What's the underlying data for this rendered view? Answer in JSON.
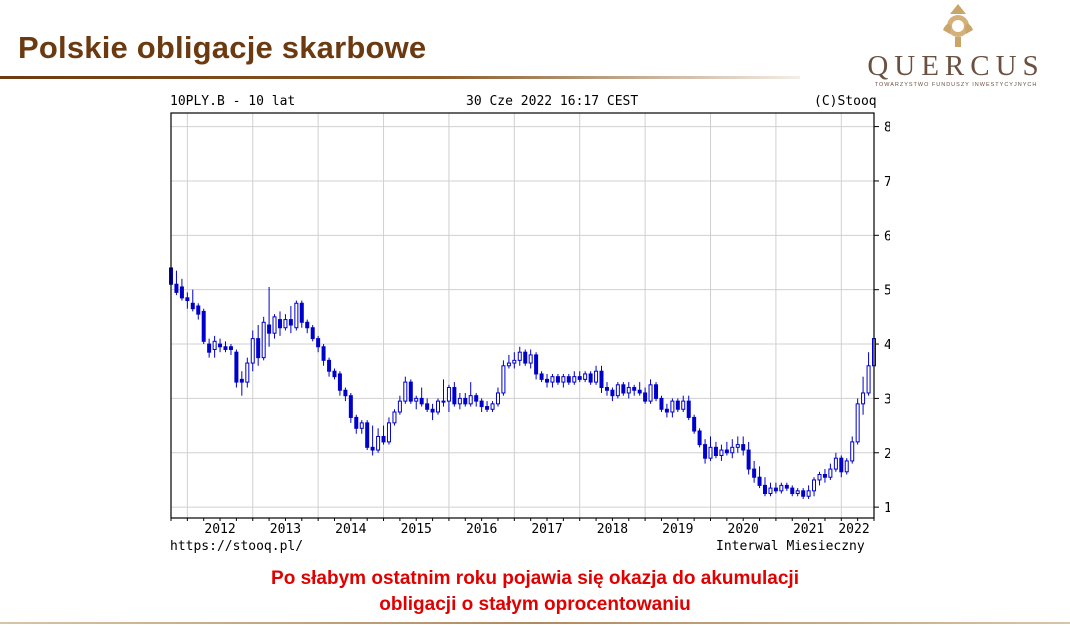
{
  "slide": {
    "title": "Polskie obligacje skarbowe",
    "logo_name": "QUERCUS",
    "logo_tagline": "TOWARZYSTWO FUNDUSZY INWESTYCYJNYCH",
    "caption_line1": "Po słabym ostatnim roku pojawia się okazja do akumulacji",
    "caption_line2": "obligacji o stałym oprocentowaniu"
  },
  "colors": {
    "title": "#6b3a10",
    "caption": "#e00000",
    "candles": "#0000cc",
    "grid": "#d0d0d0",
    "logo": "#c9a56a"
  },
  "chart_header": {
    "left": "10PLY.B - 10 lat",
    "center": "30 Cze 2022 16:17 CEST",
    "right": "(C)Stooq"
  },
  "chart_footer": {
    "left": "https://stooq.pl/",
    "right": "Interwal Miesieczny"
  },
  "chart_data": {
    "type": "candlestick",
    "interval": "monthly",
    "ylim": [
      0.8,
      8.25
    ],
    "y_ticks": [
      1,
      2,
      3,
      4,
      5,
      6,
      7,
      8
    ],
    "x_ticks": [
      "2012",
      "2013",
      "2014",
      "2015",
      "2016",
      "2017",
      "2018",
      "2019",
      "2020",
      "2021",
      "2022"
    ],
    "x_range": [
      2011.75,
      2022.5
    ],
    "grid": true,
    "y_axis_side": "right",
    "candles": [
      {
        "t": 2011.75,
        "o": 5.4,
        "h": 5.55,
        "l": 5.05,
        "c": 5.1
      },
      {
        "t": 2011.833,
        "o": 5.1,
        "h": 5.35,
        "l": 4.9,
        "c": 4.95
      },
      {
        "t": 2011.917,
        "o": 5.05,
        "h": 5.2,
        "l": 4.8,
        "c": 4.85
      },
      {
        "t": 2012.0,
        "o": 4.85,
        "h": 4.95,
        "l": 4.65,
        "c": 4.8
      },
      {
        "t": 2012.083,
        "o": 4.75,
        "h": 5.0,
        "l": 4.6,
        "c": 4.65
      },
      {
        "t": 2012.167,
        "o": 4.7,
        "h": 4.75,
        "l": 4.45,
        "c": 4.55
      },
      {
        "t": 2012.25,
        "o": 4.6,
        "h": 4.65,
        "l": 4.0,
        "c": 4.05
      },
      {
        "t": 2012.333,
        "o": 4.0,
        "h": 4.1,
        "l": 3.75,
        "c": 3.85
      },
      {
        "t": 2012.417,
        "o": 3.9,
        "h": 4.15,
        "l": 3.75,
        "c": 4.05
      },
      {
        "t": 2012.5,
        "o": 4.0,
        "h": 4.1,
        "l": 3.85,
        "c": 3.95
      },
      {
        "t": 2012.583,
        "o": 3.95,
        "h": 4.05,
        "l": 3.85,
        "c": 3.9
      },
      {
        "t": 2012.667,
        "o": 3.95,
        "h": 4.0,
        "l": 3.8,
        "c": 3.9
      },
      {
        "t": 2012.75,
        "o": 3.85,
        "h": 3.9,
        "l": 3.2,
        "c": 3.3
      },
      {
        "t": 2012.833,
        "o": 3.35,
        "h": 3.5,
        "l": 3.05,
        "c": 3.3
      },
      {
        "t": 2012.917,
        "o": 3.3,
        "h": 3.75,
        "l": 3.2,
        "c": 3.65
      },
      {
        "t": 2013.0,
        "o": 3.65,
        "h": 4.25,
        "l": 3.5,
        "c": 4.1
      },
      {
        "t": 2013.083,
        "o": 4.1,
        "h": 4.35,
        "l": 3.6,
        "c": 3.75
      },
      {
        "t": 2013.167,
        "o": 3.75,
        "h": 4.5,
        "l": 3.7,
        "c": 4.4
      },
      {
        "t": 2013.25,
        "o": 4.35,
        "h": 5.05,
        "l": 3.95,
        "c": 4.2
      },
      {
        "t": 2013.333,
        "o": 4.2,
        "h": 4.55,
        "l": 4.1,
        "c": 4.5
      },
      {
        "t": 2013.417,
        "o": 4.45,
        "h": 4.6,
        "l": 4.15,
        "c": 4.3
      },
      {
        "t": 2013.5,
        "o": 4.3,
        "h": 4.55,
        "l": 4.25,
        "c": 4.45
      },
      {
        "t": 2013.583,
        "o": 4.45,
        "h": 4.7,
        "l": 4.2,
        "c": 4.35
      },
      {
        "t": 2013.667,
        "o": 4.3,
        "h": 4.8,
        "l": 4.25,
        "c": 4.75
      },
      {
        "t": 2013.75,
        "o": 4.75,
        "h": 4.8,
        "l": 4.3,
        "c": 4.4
      },
      {
        "t": 2013.833,
        "o": 4.4,
        "h": 4.45,
        "l": 4.2,
        "c": 4.3
      },
      {
        "t": 2013.917,
        "o": 4.3,
        "h": 4.35,
        "l": 4.05,
        "c": 4.1
      },
      {
        "t": 2014.0,
        "o": 4.1,
        "h": 4.15,
        "l": 3.85,
        "c": 3.95
      },
      {
        "t": 2014.083,
        "o": 3.95,
        "h": 4.0,
        "l": 3.6,
        "c": 3.7
      },
      {
        "t": 2014.167,
        "o": 3.7,
        "h": 3.75,
        "l": 3.4,
        "c": 3.5
      },
      {
        "t": 2014.25,
        "o": 3.5,
        "h": 3.55,
        "l": 3.35,
        "c": 3.4
      },
      {
        "t": 2014.333,
        "o": 3.45,
        "h": 3.5,
        "l": 3.05,
        "c": 3.15
      },
      {
        "t": 2014.417,
        "o": 3.15,
        "h": 3.2,
        "l": 2.95,
        "c": 3.05
      },
      {
        "t": 2014.5,
        "o": 3.05,
        "h": 3.1,
        "l": 2.55,
        "c": 2.65
      },
      {
        "t": 2014.583,
        "o": 2.65,
        "h": 2.7,
        "l": 2.35,
        "c": 2.45
      },
      {
        "t": 2014.667,
        "o": 2.45,
        "h": 2.6,
        "l": 2.35,
        "c": 2.55
      },
      {
        "t": 2014.75,
        "o": 2.55,
        "h": 2.6,
        "l": 2.05,
        "c": 2.1
      },
      {
        "t": 2014.833,
        "o": 2.1,
        "h": 2.5,
        "l": 1.95,
        "c": 2.05
      },
      {
        "t": 2014.917,
        "o": 2.05,
        "h": 2.45,
        "l": 2.0,
        "c": 2.3
      },
      {
        "t": 2015.0,
        "o": 2.3,
        "h": 2.5,
        "l": 2.15,
        "c": 2.2
      },
      {
        "t": 2015.083,
        "o": 2.2,
        "h": 2.65,
        "l": 2.15,
        "c": 2.55
      },
      {
        "t": 2015.167,
        "o": 2.55,
        "h": 2.8,
        "l": 2.5,
        "c": 2.75
      },
      {
        "t": 2015.25,
        "o": 2.75,
        "h": 3.05,
        "l": 2.7,
        "c": 2.95
      },
      {
        "t": 2015.333,
        "o": 2.95,
        "h": 3.4,
        "l": 2.9,
        "c": 3.3
      },
      {
        "t": 2015.417,
        "o": 3.3,
        "h": 3.35,
        "l": 2.9,
        "c": 2.95
      },
      {
        "t": 2015.5,
        "o": 2.95,
        "h": 3.05,
        "l": 2.8,
        "c": 3.0
      },
      {
        "t": 2015.583,
        "o": 3.0,
        "h": 3.2,
        "l": 2.85,
        "c": 2.9
      },
      {
        "t": 2015.667,
        "o": 2.9,
        "h": 3.0,
        "l": 2.75,
        "c": 2.8
      },
      {
        "t": 2015.75,
        "o": 2.8,
        "h": 2.9,
        "l": 2.6,
        "c": 2.75
      },
      {
        "t": 2015.833,
        "o": 2.75,
        "h": 3.0,
        "l": 2.7,
        "c": 2.95
      },
      {
        "t": 2015.917,
        "o": 2.95,
        "h": 3.35,
        "l": 2.85,
        "c": 2.95
      },
      {
        "t": 2016.0,
        "o": 2.95,
        "h": 3.25,
        "l": 2.75,
        "c": 3.2
      },
      {
        "t": 2016.083,
        "o": 3.2,
        "h": 3.3,
        "l": 2.85,
        "c": 2.9
      },
      {
        "t": 2016.167,
        "o": 2.9,
        "h": 3.1,
        "l": 2.8,
        "c": 3.0
      },
      {
        "t": 2016.25,
        "o": 3.0,
        "h": 3.1,
        "l": 2.85,
        "c": 2.9
      },
      {
        "t": 2016.333,
        "o": 2.9,
        "h": 3.3,
        "l": 2.85,
        "c": 3.05
      },
      {
        "t": 2016.417,
        "o": 3.05,
        "h": 3.1,
        "l": 2.85,
        "c": 2.95
      },
      {
        "t": 2016.5,
        "o": 2.95,
        "h": 3.0,
        "l": 2.75,
        "c": 2.85
      },
      {
        "t": 2016.583,
        "o": 2.85,
        "h": 2.95,
        "l": 2.75,
        "c": 2.8
      },
      {
        "t": 2016.667,
        "o": 2.8,
        "h": 2.95,
        "l": 2.75,
        "c": 2.9
      },
      {
        "t": 2016.75,
        "o": 2.9,
        "h": 3.2,
        "l": 2.85,
        "c": 3.1
      },
      {
        "t": 2016.833,
        "o": 3.1,
        "h": 3.7,
        "l": 3.05,
        "c": 3.6
      },
      {
        "t": 2016.917,
        "o": 3.6,
        "h": 3.8,
        "l": 3.55,
        "c": 3.65
      },
      {
        "t": 2017.0,
        "o": 3.65,
        "h": 3.85,
        "l": 3.55,
        "c": 3.7
      },
      {
        "t": 2017.083,
        "o": 3.7,
        "h": 3.95,
        "l": 3.6,
        "c": 3.85
      },
      {
        "t": 2017.167,
        "o": 3.85,
        "h": 3.9,
        "l": 3.6,
        "c": 3.65
      },
      {
        "t": 2017.25,
        "o": 3.65,
        "h": 3.9,
        "l": 3.55,
        "c": 3.8
      },
      {
        "t": 2017.333,
        "o": 3.8,
        "h": 3.85,
        "l": 3.35,
        "c": 3.45
      },
      {
        "t": 2017.417,
        "o": 3.45,
        "h": 3.5,
        "l": 3.3,
        "c": 3.35
      },
      {
        "t": 2017.5,
        "o": 3.35,
        "h": 3.45,
        "l": 3.2,
        "c": 3.3
      },
      {
        "t": 2017.583,
        "o": 3.3,
        "h": 3.45,
        "l": 3.2,
        "c": 3.4
      },
      {
        "t": 2017.667,
        "o": 3.4,
        "h": 3.45,
        "l": 3.25,
        "c": 3.3
      },
      {
        "t": 2017.75,
        "o": 3.3,
        "h": 3.45,
        "l": 3.2,
        "c": 3.4
      },
      {
        "t": 2017.833,
        "o": 3.4,
        "h": 3.45,
        "l": 3.25,
        "c": 3.3
      },
      {
        "t": 2017.917,
        "o": 3.3,
        "h": 3.5,
        "l": 3.25,
        "c": 3.4
      },
      {
        "t": 2018.0,
        "o": 3.4,
        "h": 3.5,
        "l": 3.3,
        "c": 3.35
      },
      {
        "t": 2018.083,
        "o": 3.35,
        "h": 3.5,
        "l": 3.3,
        "c": 3.45
      },
      {
        "t": 2018.167,
        "o": 3.45,
        "h": 3.5,
        "l": 3.25,
        "c": 3.3
      },
      {
        "t": 2018.25,
        "o": 3.3,
        "h": 3.6,
        "l": 3.25,
        "c": 3.5
      },
      {
        "t": 2018.333,
        "o": 3.5,
        "h": 3.6,
        "l": 3.1,
        "c": 3.2
      },
      {
        "t": 2018.417,
        "o": 3.2,
        "h": 3.3,
        "l": 3.05,
        "c": 3.15
      },
      {
        "t": 2018.5,
        "o": 3.15,
        "h": 3.2,
        "l": 2.95,
        "c": 3.05
      },
      {
        "t": 2018.583,
        "o": 3.05,
        "h": 3.3,
        "l": 3.0,
        "c": 3.25
      },
      {
        "t": 2018.667,
        "o": 3.25,
        "h": 3.3,
        "l": 3.05,
        "c": 3.1
      },
      {
        "t": 2018.75,
        "o": 3.1,
        "h": 3.3,
        "l": 3.0,
        "c": 3.2
      },
      {
        "t": 2018.833,
        "o": 3.2,
        "h": 3.25,
        "l": 3.05,
        "c": 3.15
      },
      {
        "t": 2018.917,
        "o": 3.15,
        "h": 3.3,
        "l": 3.05,
        "c": 3.1
      },
      {
        "t": 2019.0,
        "o": 3.1,
        "h": 3.2,
        "l": 2.9,
        "c": 2.95
      },
      {
        "t": 2019.083,
        "o": 2.95,
        "h": 3.35,
        "l": 2.9,
        "c": 3.25
      },
      {
        "t": 2019.167,
        "o": 3.25,
        "h": 3.3,
        "l": 2.95,
        "c": 3.0
      },
      {
        "t": 2019.25,
        "o": 3.0,
        "h": 3.05,
        "l": 2.75,
        "c": 2.8
      },
      {
        "t": 2019.333,
        "o": 2.8,
        "h": 2.9,
        "l": 2.65,
        "c": 2.75
      },
      {
        "t": 2019.417,
        "o": 2.75,
        "h": 3.0,
        "l": 2.65,
        "c": 2.95
      },
      {
        "t": 2019.5,
        "o": 2.95,
        "h": 3.0,
        "l": 2.75,
        "c": 2.8
      },
      {
        "t": 2019.583,
        "o": 2.8,
        "h": 3.05,
        "l": 2.75,
        "c": 2.95
      },
      {
        "t": 2019.667,
        "o": 2.95,
        "h": 3.05,
        "l": 2.6,
        "c": 2.65
      },
      {
        "t": 2019.75,
        "o": 2.65,
        "h": 2.7,
        "l": 2.35,
        "c": 2.4
      },
      {
        "t": 2019.833,
        "o": 2.4,
        "h": 2.45,
        "l": 2.1,
        "c": 2.15
      },
      {
        "t": 2019.917,
        "o": 2.15,
        "h": 2.25,
        "l": 1.8,
        "c": 1.9
      },
      {
        "t": 2020.0,
        "o": 1.9,
        "h": 2.3,
        "l": 1.85,
        "c": 2.1
      },
      {
        "t": 2020.083,
        "o": 2.1,
        "h": 2.2,
        "l": 1.9,
        "c": 1.95
      },
      {
        "t": 2020.167,
        "o": 1.95,
        "h": 2.15,
        "l": 1.85,
        "c": 2.05
      },
      {
        "t": 2020.25,
        "o": 2.05,
        "h": 2.2,
        "l": 1.95,
        "c": 2.0
      },
      {
        "t": 2020.333,
        "o": 2.0,
        "h": 2.25,
        "l": 1.9,
        "c": 2.1
      },
      {
        "t": 2020.417,
        "o": 2.1,
        "h": 2.3,
        "l": 2.0,
        "c": 2.15
      },
      {
        "t": 2020.5,
        "o": 2.15,
        "h": 2.3,
        "l": 1.95,
        "c": 2.05
      },
      {
        "t": 2020.583,
        "o": 2.05,
        "h": 2.2,
        "l": 1.6,
        "c": 1.7
      },
      {
        "t": 2020.667,
        "o": 1.7,
        "h": 1.85,
        "l": 1.45,
        "c": 1.55
      },
      {
        "t": 2020.75,
        "o": 1.55,
        "h": 1.75,
        "l": 1.35,
        "c": 1.4
      },
      {
        "t": 2020.833,
        "o": 1.4,
        "h": 1.55,
        "l": 1.2,
        "c": 1.25
      },
      {
        "t": 2020.917,
        "o": 1.25,
        "h": 1.45,
        "l": 1.2,
        "c": 1.35
      },
      {
        "t": 2021.0,
        "o": 1.35,
        "h": 1.45,
        "l": 1.25,
        "c": 1.3
      },
      {
        "t": 2021.083,
        "o": 1.3,
        "h": 1.45,
        "l": 1.25,
        "c": 1.4
      },
      {
        "t": 2021.167,
        "o": 1.4,
        "h": 1.45,
        "l": 1.3,
        "c": 1.35
      },
      {
        "t": 2021.25,
        "o": 1.35,
        "h": 1.4,
        "l": 1.2,
        "c": 1.25
      },
      {
        "t": 2021.333,
        "o": 1.25,
        "h": 1.35,
        "l": 1.2,
        "c": 1.3
      },
      {
        "t": 2021.417,
        "o": 1.3,
        "h": 1.35,
        "l": 1.15,
        "c": 1.2
      },
      {
        "t": 2021.5,
        "o": 1.2,
        "h": 1.4,
        "l": 1.15,
        "c": 1.3
      },
      {
        "t": 2021.583,
        "o": 1.3,
        "h": 1.55,
        "l": 1.2,
        "c": 1.5
      },
      {
        "t": 2021.667,
        "o": 1.5,
        "h": 1.65,
        "l": 1.4,
        "c": 1.6
      },
      {
        "t": 2021.75,
        "o": 1.6,
        "h": 1.7,
        "l": 1.45,
        "c": 1.55
      },
      {
        "t": 2021.833,
        "o": 1.55,
        "h": 1.8,
        "l": 1.5,
        "c": 1.7
      },
      {
        "t": 2021.917,
        "o": 1.7,
        "h": 2.0,
        "l": 1.65,
        "c": 1.9
      },
      {
        "t": 2022.0,
        "o": 1.9,
        "h": 1.95,
        "l": 1.55,
        "c": 1.65
      },
      {
        "t": 2022.083,
        "o": 1.65,
        "h": 1.9,
        "l": 1.6,
        "c": 1.85
      },
      {
        "t": 2022.167,
        "o": 1.85,
        "h": 2.3,
        "l": 1.8,
        "c": 2.2
      },
      {
        "t": 2022.25,
        "o": 2.2,
        "h": 3.0,
        "l": 2.15,
        "c": 2.9
      },
      {
        "t": 2022.333,
        "o": 2.9,
        "h": 3.4,
        "l": 2.7,
        "c": 3.1
      },
      {
        "t": 2022.417,
        "o": 3.1,
        "h": 3.85,
        "l": 3.05,
        "c": 3.6
      },
      {
        "t": 2022.5,
        "o": 3.6,
        "h": 4.15,
        "l": 3.5,
        "c": 4.1
      }
    ]
  }
}
